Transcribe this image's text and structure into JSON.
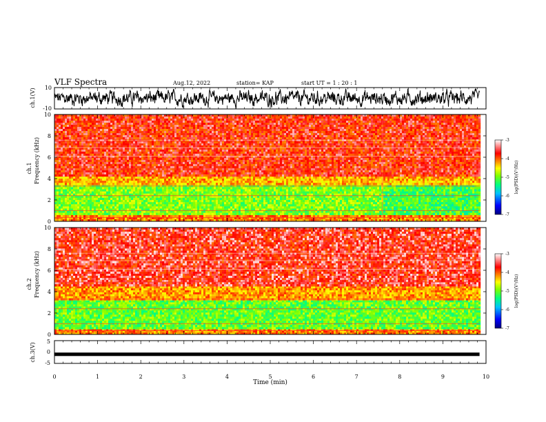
{
  "header": {
    "title": "VLF Spectra",
    "date": "Aug.12, 2022",
    "station": "station= KAP",
    "start": "start  UT =   1 : 20 : 1"
  },
  "chart_data": [
    {
      "type": "line",
      "panel": "ch1-waveform",
      "ylabel": "ch.1(V)",
      "ylim": [
        -10,
        10
      ],
      "y_ticks": [
        "10",
        "-10"
      ],
      "xlim": [
        0,
        10
      ],
      "x_data_range": [
        0,
        9.85
      ],
      "description_values": {
        "mean": 0,
        "typical_amplitude": 5
      },
      "color": "#000000"
    },
    {
      "type": "heatmap",
      "panel": "ch1-spectrogram",
      "ylabel": "ch.1",
      "ylabel2": "Frequency  (kHz)",
      "ylim": [
        0,
        10
      ],
      "y_ticks": [
        "0",
        "2",
        "4",
        "6",
        "8",
        "10"
      ],
      "xlim": [
        0,
        10
      ],
      "x_data_range": [
        0,
        9.85
      ],
      "change_time_min": 7.6,
      "colorbar": {
        "label": "log(PSD)(V²/Hz)",
        "ticks": [
          "-3",
          "-4",
          "-5",
          "-6",
          "-7"
        ],
        "range": [
          -7,
          -3
        ]
      },
      "bands_kHz": [
        {
          "from": 0.0,
          "to": 0.6,
          "level": -4.0
        },
        {
          "from": 0.6,
          "to": 3.4,
          "level": -5.0
        },
        {
          "from": 3.4,
          "to": 4.2,
          "level": -4.2
        },
        {
          "from": 4.2,
          "to": 10.0,
          "level": -3.6
        }
      ]
    },
    {
      "type": "heatmap",
      "panel": "ch2-spectrogram",
      "ylabel": "ch.2",
      "ylabel2": "Frequency  (kHz)",
      "ylim": [
        0,
        10
      ],
      "y_ticks": [
        "0",
        "2",
        "4",
        "6",
        "8",
        "10"
      ],
      "xlim": [
        0,
        10
      ],
      "x_data_range": [
        0,
        9.85
      ],
      "colorbar": {
        "label": "log(PSD)(V²/Hz)",
        "ticks": [
          "-3",
          "-4",
          "-5",
          "-6",
          "-7"
        ],
        "range": [
          -7,
          -3
        ]
      },
      "bands_kHz": [
        {
          "from": 0.0,
          "to": 0.5,
          "level": -4.0
        },
        {
          "from": 0.5,
          "to": 3.2,
          "level": -5.1
        },
        {
          "from": 3.2,
          "to": 4.5,
          "level": -4.1
        },
        {
          "from": 4.5,
          "to": 10.0,
          "level": -3.5
        }
      ]
    },
    {
      "type": "line",
      "panel": "ch3-waveform",
      "ylabel": "ch.3(V)",
      "ylim": [
        -5,
        5
      ],
      "y_ticks": [
        "5",
        "0",
        "-5"
      ],
      "xlim": [
        0,
        10
      ],
      "x_data_range": [
        0,
        9.85
      ],
      "value_V": -1,
      "color": "#000000"
    }
  ],
  "x_axis": {
    "label": "Time  (min)",
    "ticks": [
      "0",
      "1",
      "2",
      "3",
      "4",
      "5",
      "6",
      "7",
      "8",
      "9",
      "10"
    ]
  },
  "colors": {
    "colormap": [
      "#000080",
      "#0000ff",
      "#00c0ff",
      "#00ff80",
      "#80ff00",
      "#ffff00",
      "#ff8000",
      "#ff0000",
      "#ffffff"
    ]
  }
}
